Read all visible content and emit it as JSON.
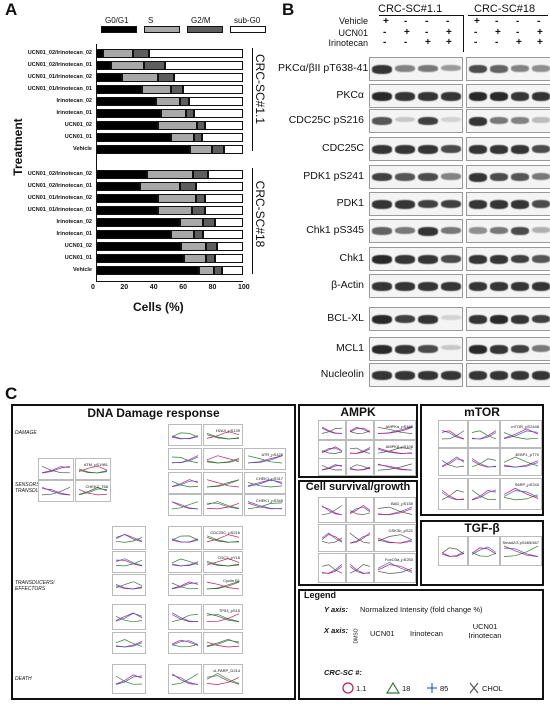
{
  "panels": {
    "a": "A",
    "b": "B",
    "c": "C"
  },
  "panel_a": {
    "legend": [
      "G0/G1",
      "S",
      "G2/M",
      "sub-G0"
    ],
    "colors": [
      "#000000",
      "#a8a8a8",
      "#5e5e5e",
      "#ffffff"
    ],
    "xlabel": "Cells (%)",
    "ylabel": "Treatment",
    "xticks": [
      "0",
      "20",
      "40",
      "60",
      "80",
      "100"
    ],
    "groups": [
      "CRC-SC#1.1",
      "CRC-SC#18"
    ]
  },
  "chart_data": {
    "type": "bar",
    "stacked": true,
    "orientation": "horizontal",
    "xlabel": "Cells (%)",
    "ylabel": "Treatment",
    "xlim": [
      0,
      100
    ],
    "series_names": [
      "G0/G1",
      "S",
      "G2/M",
      "sub-G0"
    ],
    "groups": [
      {
        "name": "CRC-SC#1.1",
        "categories": [
          "UCN01_02/Irinotecan_02",
          "UCN01_02/Irinotecan_01",
          "UCN01_01/Irinotecan_02",
          "UCN01_01/Irinotecan_01",
          "Irinotecan_02",
          "Irinotecan_01",
          "UCN01_02",
          "UCN01_01",
          "Vehicle"
        ],
        "values": [
          [
            5,
            20,
            11,
            64
          ],
          [
            10,
            23,
            14,
            53
          ],
          [
            18,
            24,
            11,
            47
          ],
          [
            31,
            20,
            8,
            41
          ],
          [
            41,
            16,
            6,
            37
          ],
          [
            44,
            17,
            6,
            33
          ],
          [
            42,
            27,
            5,
            26
          ],
          [
            51,
            16,
            5,
            28
          ],
          [
            64,
            15,
            8,
            13
          ]
        ]
      },
      {
        "name": "CRC-SC#18",
        "categories": [
          "UCN01_02/Irinotecan_02",
          "UCN01_02/Irinotecan_01",
          "UCN01_01/Irinotecan_02",
          "UCN01_01/Irinotecan_01",
          "Irinotecan_02",
          "Irinotecan_01",
          "UCN01_02",
          "UCN01_01",
          "Vehicle"
        ],
        "values": [
          [
            35,
            31,
            10,
            24
          ],
          [
            30,
            27,
            11,
            32
          ],
          [
            42,
            26,
            6,
            26
          ],
          [
            42,
            23,
            9,
            26
          ],
          [
            57,
            16,
            8,
            19
          ],
          [
            51,
            16,
            6,
            27
          ],
          [
            58,
            17,
            7,
            18
          ],
          [
            60,
            15,
            6,
            19
          ],
          [
            70,
            10,
            6,
            14
          ]
        ]
      }
    ]
  },
  "panel_b": {
    "headers": [
      "CRC-SC#1.1",
      "CRC-SC#18"
    ],
    "treatments": [
      "Vehicle",
      "UCN01",
      "Irinotecan"
    ],
    "signs": [
      [
        "+",
        "-",
        "-",
        "-"
      ],
      [
        "-",
        "+",
        "-",
        "+"
      ],
      [
        "-",
        "-",
        "+",
        "+"
      ]
    ],
    "blots": [
      "PKCα/βII pT638-41",
      "PKCα",
      "CDC25C pS216",
      "CDC25C",
      "PDK1 pS241",
      "PDK1",
      "Chk1 pS345",
      "Chk1",
      "β-Actin",
      "BCL-XL",
      "MCL1",
      "Nucleolin"
    ]
  },
  "panel_c": {
    "dna_title": "DNA Damage response",
    "ampk_title": "AMPK",
    "mtor_title": "mTOR",
    "survival_title": "Cell survival/growth",
    "tgf_title": "TGF-β",
    "categories": [
      "DAMAGE",
      "SENSORS/ TRANSDUCERS",
      "TRANSDUCERS/ EFFECTORS",
      "DEATH"
    ],
    "proteins": [
      "H2AX_pS139",
      "ATM_pS1981",
      "ATR_pS428",
      "CHEK2_T68",
      "CHEK1_pS317",
      "CHEK1_pS345",
      "CDC25C_pS216",
      "CDC2_pY15",
      "Cyclin B1",
      "TP53_pS15",
      "cl-PARP_D214",
      "AMPKα_pS485",
      "AMPKβ_pS108",
      "mTOR_pS2448",
      "4EBP1_pT70",
      "S6RP_pS240",
      "BAD_pS155",
      "GSK3b_pS21",
      "FoxO3a_pS253",
      "Smad2/3 pS465/467"
    ],
    "legend": {
      "title": "Legend",
      "y_axis_label": "Y axis:",
      "y_axis_text": "Normalized Intensity (fold change %)",
      "x_axis_label": "X axis:",
      "x_groups": [
        "DMSO",
        "UCN01",
        "Irinotecan",
        "UCN01 Irinotecan"
      ],
      "crc_label": "CRC-SC #:",
      "lines": [
        "1.1",
        "18",
        "85",
        "CHOL"
      ]
    }
  }
}
